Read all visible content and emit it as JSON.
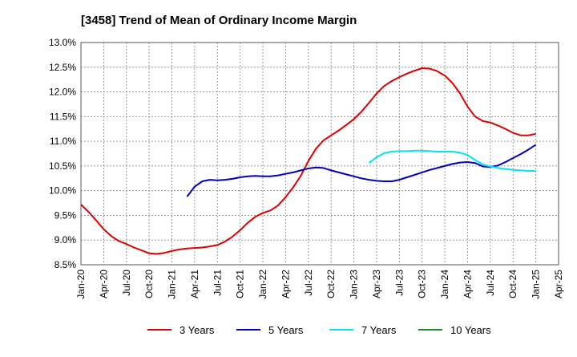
{
  "chart_data": {
    "type": "line",
    "title": "[3458]  Trend of Mean of Ordinary Income Margin",
    "xlabel": "",
    "ylabel": "",
    "y_tick_labels": [
      "8.5%",
      "9.0%",
      "9.5%",
      "10.0%",
      "10.5%",
      "11.0%",
      "11.5%",
      "12.0%",
      "12.5%",
      "13.0%"
    ],
    "y_tick_values": [
      8.5,
      9.0,
      9.5,
      10.0,
      10.5,
      11.0,
      11.5,
      12.0,
      12.5,
      13.0
    ],
    "ylim": [
      8.5,
      13.0
    ],
    "x_tick_labels": [
      "Jan-20",
      "Apr-20",
      "Jul-20",
      "Oct-20",
      "Jan-21",
      "Apr-21",
      "Jul-21",
      "Oct-21",
      "Jan-22",
      "Apr-22",
      "Jul-22",
      "Oct-22",
      "Jan-23",
      "Apr-23",
      "Jul-23",
      "Oct-23",
      "Jan-24",
      "Apr-24",
      "Jul-24",
      "Oct-24",
      "Jan-25",
      "Apr-25"
    ],
    "grid": true,
    "legend_position": "bottom",
    "series": [
      {
        "name": "3 Years",
        "color": "#dd0000",
        "x": [
          "Jan-20",
          "Feb-20",
          "Mar-20",
          "Apr-20",
          "May-20",
          "Jun-20",
          "Jul-20",
          "Aug-20",
          "Sep-20",
          "Oct-20",
          "Nov-20",
          "Dec-20",
          "Jan-21",
          "Feb-21",
          "Mar-21",
          "Apr-21",
          "May-21",
          "Jun-21",
          "Jul-21",
          "Aug-21",
          "Sep-21",
          "Oct-21",
          "Nov-21",
          "Dec-21",
          "Jan-22",
          "Feb-22",
          "Mar-22",
          "Apr-22",
          "May-22",
          "Jun-22",
          "Jul-22",
          "Aug-22",
          "Sep-22",
          "Oct-22",
          "Nov-22",
          "Dec-22",
          "Jan-23",
          "Feb-23",
          "Mar-23",
          "Apr-23",
          "May-23",
          "Jun-23",
          "Jul-23",
          "Aug-23",
          "Sep-23",
          "Oct-23",
          "Nov-23",
          "Dec-23",
          "Jan-24",
          "Feb-24",
          "Mar-24",
          "Apr-24",
          "May-24",
          "Jun-24",
          "Jul-24",
          "Aug-24",
          "Sep-24",
          "Oct-24",
          "Nov-24",
          "Dec-24",
          "Jan-25"
        ],
        "values": [
          9.72,
          9.57,
          9.4,
          9.22,
          9.08,
          8.98,
          8.92,
          8.85,
          8.79,
          8.73,
          8.72,
          8.74,
          8.78,
          8.81,
          8.83,
          8.84,
          8.85,
          8.87,
          8.9,
          8.97,
          9.07,
          9.2,
          9.35,
          9.47,
          9.55,
          9.6,
          9.7,
          9.87,
          10.07,
          10.3,
          10.6,
          10.85,
          11.02,
          11.12,
          11.22,
          11.33,
          11.45,
          11.6,
          11.78,
          11.97,
          12.12,
          12.22,
          12.3,
          12.37,
          12.43,
          12.48,
          12.47,
          12.42,
          12.33,
          12.18,
          11.97,
          11.7,
          11.5,
          11.41,
          11.38,
          11.32,
          11.25,
          11.17,
          11.12,
          11.12,
          11.15
        ]
      },
      {
        "name": "5 Years",
        "color": "#0000bb",
        "x": [
          "Mar-21",
          "Apr-21",
          "May-21",
          "Jun-21",
          "Jul-21",
          "Aug-21",
          "Sep-21",
          "Oct-21",
          "Nov-21",
          "Dec-21",
          "Jan-22",
          "Feb-22",
          "Mar-22",
          "Apr-22",
          "May-22",
          "Jun-22",
          "Jul-22",
          "Aug-22",
          "Sep-22",
          "Oct-22",
          "Nov-22",
          "Dec-22",
          "Jan-23",
          "Feb-23",
          "Mar-23",
          "Apr-23",
          "May-23",
          "Jun-23",
          "Jul-23",
          "Aug-23",
          "Sep-23",
          "Oct-23",
          "Nov-23",
          "Dec-23",
          "Jan-24",
          "Feb-24",
          "Mar-24",
          "Apr-24",
          "May-24",
          "Jun-24",
          "Jul-24",
          "Aug-24",
          "Sep-24",
          "Oct-24",
          "Nov-24",
          "Dec-24",
          "Jan-25"
        ],
        "values": [
          9.88,
          10.08,
          10.19,
          10.22,
          10.21,
          10.22,
          10.24,
          10.27,
          10.29,
          10.3,
          10.29,
          10.29,
          10.31,
          10.34,
          10.37,
          10.41,
          10.45,
          10.47,
          10.46,
          10.41,
          10.37,
          10.33,
          10.29,
          10.25,
          10.22,
          10.2,
          10.19,
          10.19,
          10.22,
          10.27,
          10.32,
          10.37,
          10.42,
          10.46,
          10.5,
          10.54,
          10.57,
          10.58,
          10.56,
          10.49,
          10.48,
          10.51,
          10.58,
          10.66,
          10.74,
          10.83,
          10.93
        ]
      },
      {
        "name": "7 Years",
        "color": "#00e5ee",
        "x": [
          "Mar-23",
          "Apr-23",
          "May-23",
          "Jun-23",
          "Jul-23",
          "Aug-23",
          "Sep-23",
          "Oct-23",
          "Nov-23",
          "Dec-23",
          "Jan-24",
          "Feb-24",
          "Mar-24",
          "Apr-24",
          "May-24",
          "Jun-24",
          "Jul-24",
          "Aug-24",
          "Sep-24",
          "Oct-24",
          "Nov-24",
          "Dec-24",
          "Jan-25"
        ],
        "values": [
          10.56,
          10.68,
          10.76,
          10.79,
          10.8,
          10.8,
          10.81,
          10.81,
          10.8,
          10.79,
          10.79,
          10.79,
          10.77,
          10.72,
          10.62,
          10.53,
          10.49,
          10.46,
          10.44,
          10.42,
          10.41,
          10.4,
          10.4
        ]
      },
      {
        "name": "10 Years",
        "color": "#228b22",
        "x": [],
        "values": []
      }
    ]
  }
}
